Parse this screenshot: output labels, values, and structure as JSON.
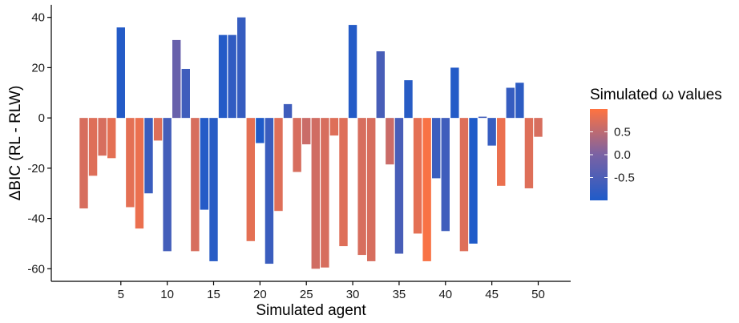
{
  "chart_data": {
    "type": "bar",
    "xlabel": "Simulated agent",
    "ylabel": "ΔBIC (RL - RLW)",
    "ylim": [
      -65,
      45
    ],
    "xlim": [
      -2.5,
      53.5
    ],
    "grid": false,
    "x_ticks": [
      5,
      10,
      15,
      20,
      25,
      30,
      35,
      40,
      45,
      50
    ],
    "y_ticks": [
      -60,
      -40,
      -20,
      0,
      20,
      40
    ],
    "legend": {
      "title": "Simulated ω values",
      "position": "right",
      "type": "colorbar",
      "range": [
        -1,
        1
      ],
      "ticks": [
        0.5,
        0.0,
        -0.5
      ],
      "tick_labels": [
        "0.5",
        "0.0",
        "-0.5"
      ],
      "low_color": "#1F5BC9",
      "mid_color": "#7A62A4",
      "high_color": "#FF7340"
    },
    "categories": [
      1,
      2,
      3,
      4,
      5,
      6,
      7,
      8,
      9,
      10,
      11,
      12,
      13,
      14,
      15,
      16,
      17,
      18,
      19,
      20,
      21,
      22,
      23,
      24,
      25,
      26,
      27,
      28,
      29,
      30,
      31,
      32,
      33,
      34,
      35,
      36,
      37,
      38,
      39,
      40,
      41,
      42,
      43,
      44,
      45,
      46,
      47,
      48,
      49,
      50
    ],
    "values": [
      -36,
      -23,
      -15,
      -16,
      36,
      -35.5,
      -44,
      -30,
      -9,
      -53,
      31,
      19.5,
      -53,
      -36.5,
      -57,
      33,
      33,
      40,
      -49,
      -10,
      -58,
      -37,
      5.5,
      -21.5,
      -10.5,
      -60,
      -59.5,
      -7,
      -51,
      37,
      -54.5,
      -57,
      26.5,
      -18.5,
      -54,
      15,
      -46,
      -57,
      -24,
      -45,
      20,
      -53,
      -50,
      0.5,
      -11,
      -27,
      12,
      14,
      -28,
      -7.5
    ],
    "omega": [
      0.7,
      0.75,
      0.7,
      0.8,
      -0.95,
      0.8,
      0.85,
      -0.7,
      0.75,
      -0.6,
      -0.2,
      -0.65,
      0.7,
      -0.95,
      -0.9,
      -0.95,
      -0.8,
      -0.75,
      0.8,
      -1.0,
      -0.7,
      0.75,
      -0.65,
      0.7,
      0.6,
      0.65,
      0.7,
      0.75,
      0.75,
      -0.95,
      0.7,
      0.7,
      -0.55,
      0.6,
      -0.55,
      -0.9,
      0.8,
      0.95,
      -0.7,
      -0.65,
      -0.95,
      0.75,
      -1.0,
      -0.6,
      -0.75,
      0.85,
      -0.75,
      -0.85,
      0.75,
      0.7
    ]
  }
}
